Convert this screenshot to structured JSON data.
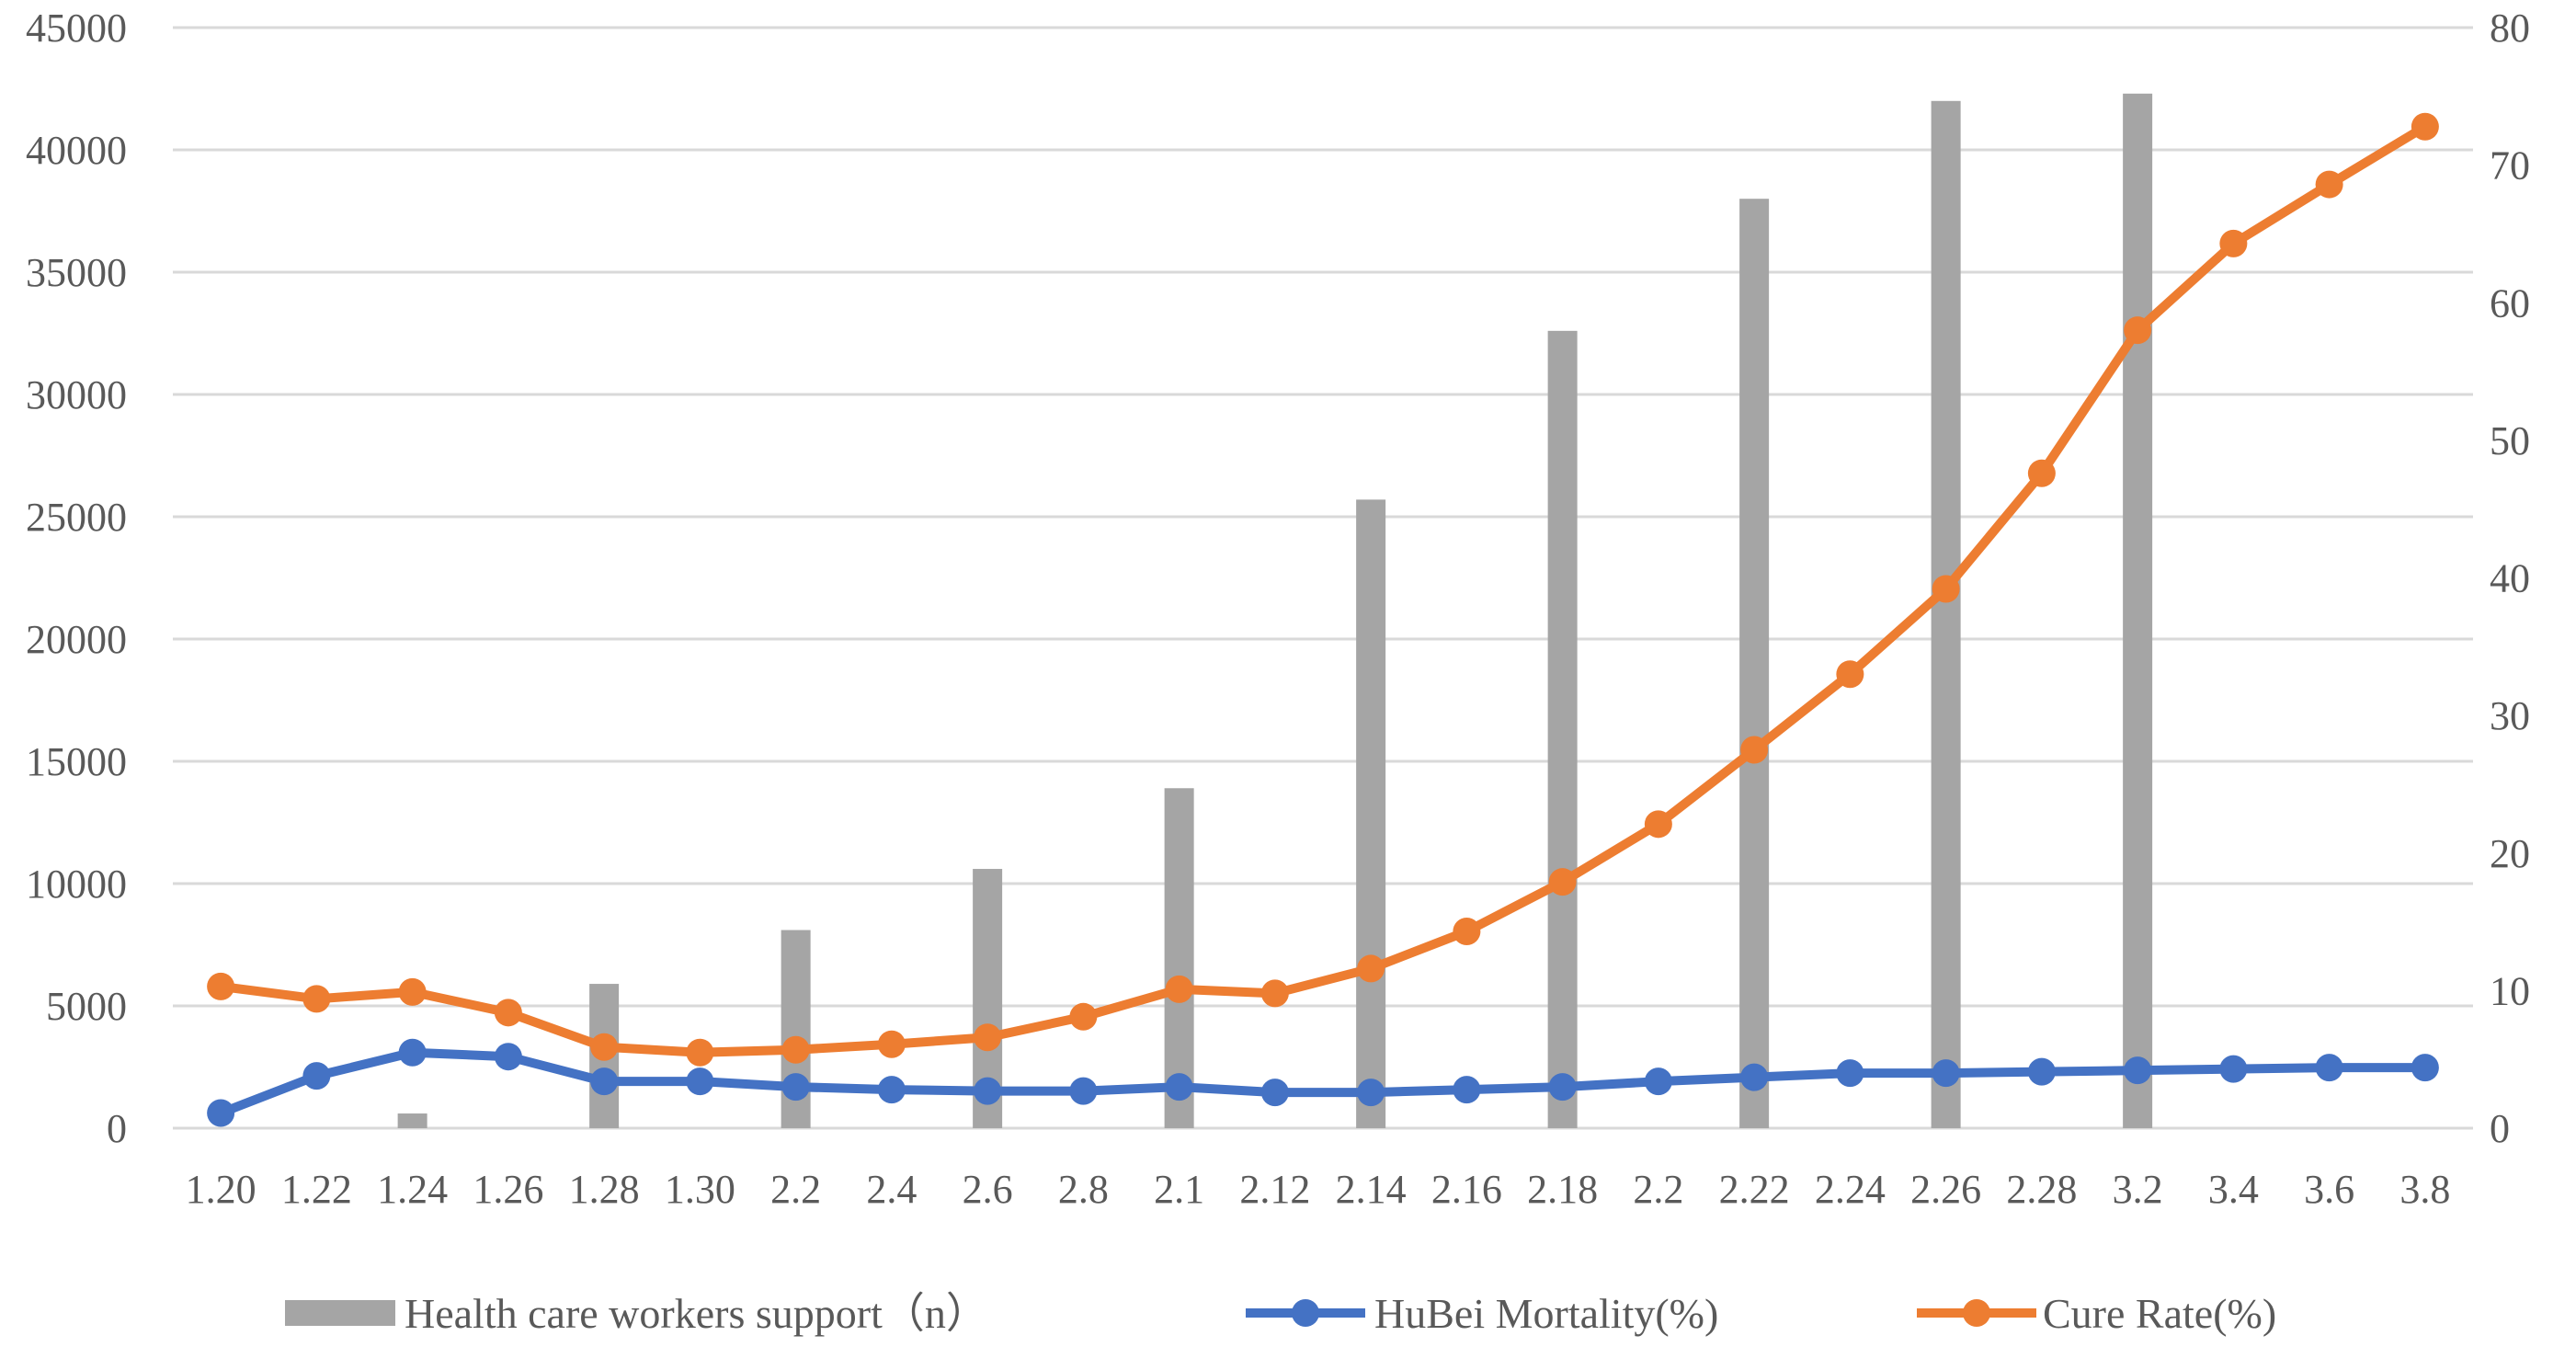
{
  "chart_data": {
    "type": "bar",
    "categories": [
      "1.20",
      "1.22",
      "1.24",
      "1.26",
      "1.28",
      "1.30",
      "2.2",
      "2.4",
      "2.6",
      "2.8",
      "2.1",
      "2.12",
      "2.14",
      "2.16",
      "2.18",
      "2.2",
      "2.22",
      "2.24",
      "2.26",
      "2.28",
      "3.2",
      "3.4",
      "3.6",
      "3.8"
    ],
    "y_left": {
      "min": 0,
      "max": 45000,
      "step": 5000,
      "ticks": [
        "0",
        "5000",
        "10000",
        "15000",
        "20000",
        "25000",
        "30000",
        "35000",
        "40000",
        "45000"
      ]
    },
    "y_right": {
      "min": 0,
      "max": 80,
      "step": 10,
      "ticks": [
        "0",
        "10",
        "20",
        "30",
        "40",
        "50",
        "60",
        "70",
        "80"
      ]
    },
    "grid": true,
    "legend_position": "bottom",
    "series": [
      {
        "name": "Health care workers support（n）",
        "type": "bar",
        "axis": "left",
        "color": "#a5a5a5",
        "values": [
          0,
          0,
          600,
          0,
          5900,
          0,
          8100,
          0,
          10600,
          0,
          13900,
          0,
          25700,
          0,
          32600,
          0,
          38000,
          0,
          42000,
          0,
          42300,
          0,
          0,
          0
        ]
      },
      {
        "name": "HuBei Mortality(%)",
        "type": "line",
        "axis": "right",
        "color": "#4472c4",
        "values": [
          1.1,
          3.8,
          5.5,
          5.2,
          3.4,
          3.4,
          3.0,
          2.8,
          2.7,
          2.7,
          3.0,
          2.6,
          2.6,
          2.8,
          3.0,
          3.4,
          3.7,
          4.0,
          4.0,
          4.1,
          4.2,
          4.3,
          4.4,
          4.4
        ]
      },
      {
        "name": "Cure Rate(%)",
        "type": "line",
        "axis": "right",
        "color": "#ed7d31",
        "values": [
          10.3,
          9.4,
          9.9,
          8.4,
          5.9,
          5.5,
          5.7,
          6.1,
          6.6,
          8.1,
          10.1,
          9.8,
          11.6,
          14.3,
          17.9,
          22.1,
          27.5,
          33.0,
          39.2,
          47.6,
          58.0,
          64.3,
          68.6,
          72.8
        ]
      }
    ]
  }
}
